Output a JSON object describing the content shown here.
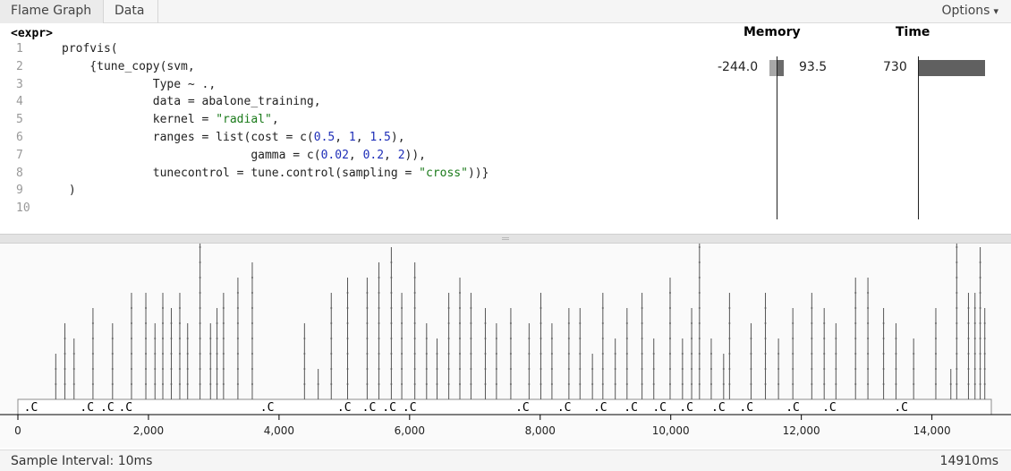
{
  "tabs": [
    {
      "label": "Flame Graph",
      "active": true
    },
    {
      "label": "Data",
      "active": false
    }
  ],
  "options_label": "Options",
  "source": {
    "expr_label": "<expr>",
    "columns": {
      "memory": "Memory",
      "time": "Time"
    },
    "lines": [
      {
        "num": "1",
        "parts": [
          [
            "t",
            "profvis("
          ]
        ]
      },
      {
        "num": "2",
        "parts": [
          [
            "t",
            "    {tune_copy(svm,"
          ]
        ]
      },
      {
        "num": "3",
        "parts": [
          [
            "t",
            "             Type ~ .,"
          ]
        ]
      },
      {
        "num": "4",
        "parts": [
          [
            "t",
            "             data = abalone_training,"
          ]
        ]
      },
      {
        "num": "5",
        "parts": [
          [
            "t",
            "             kernel = "
          ],
          [
            "s",
            "\"radial\""
          ],
          [
            "t",
            ","
          ]
        ]
      },
      {
        "num": "6",
        "parts": [
          [
            "t",
            "             ranges = list(cost = c("
          ],
          [
            "n",
            "0.5"
          ],
          [
            "t",
            ", "
          ],
          [
            "n",
            "1"
          ],
          [
            "t",
            ", "
          ],
          [
            "n",
            "1.5"
          ],
          [
            "t",
            "),"
          ]
        ]
      },
      {
        "num": "7",
        "parts": [
          [
            "t",
            "                           gamma = c("
          ],
          [
            "n",
            "0.02"
          ],
          [
            "t",
            ", "
          ],
          [
            "n",
            "0.2"
          ],
          [
            "t",
            ", "
          ],
          [
            "n",
            "2"
          ],
          [
            "t",
            ")),"
          ]
        ]
      },
      {
        "num": "8",
        "parts": [
          [
            "t",
            "             tunecontrol = tune.control(sampling = "
          ],
          [
            "s",
            "\"cross\""
          ],
          [
            "t",
            "))}"
          ]
        ]
      },
      {
        "num": "9",
        "parts": [
          [
            "t",
            " )"
          ]
        ]
      },
      {
        "num": "10",
        "parts": []
      }
    ],
    "line2_metrics": {
      "memory_dealloc": "-244.0",
      "memory_alloc": "93.5",
      "time_ms": "730"
    }
  },
  "flame_graph": {
    "x_ticks": [
      "0",
      "2,000",
      "4,000",
      "6,000",
      "8,000",
      "10,000",
      "12,000",
      "14,000"
    ],
    "x_tick_values": [
      0,
      2000,
      4000,
      6000,
      8000,
      10000,
      12000,
      14000
    ],
    "x_max": 14910,
    "block_label": ".C",
    "block_starts": [
      50,
      910,
      1220,
      1500,
      3670,
      4850,
      5230,
      5540,
      5850,
      7580,
      8220,
      8770,
      9240,
      9680,
      10090,
      10580,
      11010,
      11720,
      12280,
      13380
    ],
    "block_widths": [
      150,
      180,
      160,
      140,
      180,
      200,
      160,
      180,
      180,
      200,
      200,
      210,
      200,
      190,
      160,
      180,
      180,
      200,
      180,
      180
    ],
    "spikes": [
      {
        "t": 580,
        "depth": 3
      },
      {
        "t": 720,
        "depth": 5
      },
      {
        "t": 860,
        "depth": 4
      },
      {
        "t": 1150,
        "depth": 6
      },
      {
        "t": 1450,
        "depth": 5
      },
      {
        "t": 1740,
        "depth": 7
      },
      {
        "t": 1960,
        "depth": 7
      },
      {
        "t": 2100,
        "depth": 5
      },
      {
        "t": 2220,
        "depth": 7
      },
      {
        "t": 2350,
        "depth": 6
      },
      {
        "t": 2480,
        "depth": 7
      },
      {
        "t": 2600,
        "depth": 5
      },
      {
        "t": 2790,
        "depth": 11
      },
      {
        "t": 2950,
        "depth": 5
      },
      {
        "t": 3050,
        "depth": 6
      },
      {
        "t": 3150,
        "depth": 7
      },
      {
        "t": 3370,
        "depth": 8
      },
      {
        "t": 3590,
        "depth": 9
      },
      {
        "t": 4390,
        "depth": 5
      },
      {
        "t": 4600,
        "depth": 2
      },
      {
        "t": 4800,
        "depth": 7
      },
      {
        "t": 5050,
        "depth": 8
      },
      {
        "t": 5350,
        "depth": 8
      },
      {
        "t": 5530,
        "depth": 9
      },
      {
        "t": 5720,
        "depth": 10
      },
      {
        "t": 5880,
        "depth": 7
      },
      {
        "t": 6080,
        "depth": 9
      },
      {
        "t": 6260,
        "depth": 5
      },
      {
        "t": 6420,
        "depth": 4
      },
      {
        "t": 6600,
        "depth": 7
      },
      {
        "t": 6770,
        "depth": 8
      },
      {
        "t": 6940,
        "depth": 7
      },
      {
        "t": 7160,
        "depth": 6
      },
      {
        "t": 7330,
        "depth": 5
      },
      {
        "t": 7550,
        "depth": 6
      },
      {
        "t": 7830,
        "depth": 5
      },
      {
        "t": 8010,
        "depth": 7
      },
      {
        "t": 8180,
        "depth": 5
      },
      {
        "t": 8440,
        "depth": 6
      },
      {
        "t": 8610,
        "depth": 6
      },
      {
        "t": 8800,
        "depth": 3
      },
      {
        "t": 8960,
        "depth": 7
      },
      {
        "t": 9150,
        "depth": 4
      },
      {
        "t": 9330,
        "depth": 6
      },
      {
        "t": 9560,
        "depth": 7
      },
      {
        "t": 9740,
        "depth": 4
      },
      {
        "t": 9990,
        "depth": 8
      },
      {
        "t": 10180,
        "depth": 4
      },
      {
        "t": 10320,
        "depth": 6
      },
      {
        "t": 10440,
        "depth": 11
      },
      {
        "t": 10620,
        "depth": 4
      },
      {
        "t": 10810,
        "depth": 3
      },
      {
        "t": 10900,
        "depth": 7
      },
      {
        "t": 11230,
        "depth": 5
      },
      {
        "t": 11450,
        "depth": 7
      },
      {
        "t": 11650,
        "depth": 4
      },
      {
        "t": 11870,
        "depth": 6
      },
      {
        "t": 12160,
        "depth": 7
      },
      {
        "t": 12350,
        "depth": 6
      },
      {
        "t": 12530,
        "depth": 5
      },
      {
        "t": 12830,
        "depth": 8
      },
      {
        "t": 13020,
        "depth": 8
      },
      {
        "t": 13260,
        "depth": 6
      },
      {
        "t": 13450,
        "depth": 5
      },
      {
        "t": 13720,
        "depth": 4
      },
      {
        "t": 14060,
        "depth": 6
      },
      {
        "t": 14290,
        "depth": 2
      },
      {
        "t": 14380,
        "depth": 11
      },
      {
        "t": 14560,
        "depth": 7
      },
      {
        "t": 14660,
        "depth": 7
      },
      {
        "t": 14740,
        "depth": 10
      },
      {
        "t": 14810,
        "depth": 6
      }
    ]
  },
  "status": {
    "sample_interval": "Sample Interval: 10ms",
    "total_time": "14910ms"
  },
  "colors": {
    "memory_dealloc_bar": "#a7a7a7",
    "memory_alloc_bar": "#6b6b6b",
    "time_bar": "#606060",
    "flame_block_fill": "#ffffff",
    "flame_block_stroke": "#8c8c8c",
    "flame_spike_stroke": "#555555"
  },
  "icons": {
    "options_caret": "caret-down-icon"
  }
}
